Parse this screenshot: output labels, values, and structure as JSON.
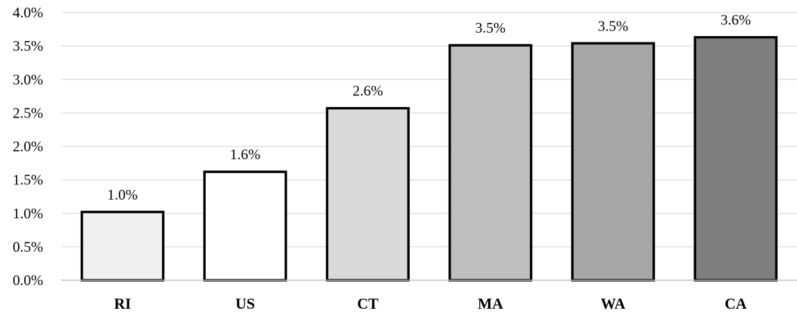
{
  "chart_data": {
    "type": "bar",
    "title": "",
    "xlabel": "",
    "ylabel": "",
    "categories": [
      "RI",
      "US",
      "CT",
      "MA",
      "WA",
      "CA"
    ],
    "values": [
      1.02,
      1.62,
      2.57,
      3.51,
      3.54,
      3.63
    ],
    "data_labels": [
      "1.0%",
      "1.6%",
      "2.6%",
      "3.5%",
      "3.5%",
      "3.6%"
    ],
    "bar_colors": [
      "#f0f0f0",
      "#ffffff",
      "#d9d9d9",
      "#bfbfbf",
      "#a6a6a6",
      "#7f7f7f"
    ],
    "bar_outline_color": "#000000",
    "ylim": [
      0,
      4
    ],
    "yticks": [
      0,
      0.5,
      1.0,
      1.5,
      2.0,
      2.5,
      3.0,
      3.5,
      4.0
    ],
    "ytick_labels": [
      "0.0%",
      "0.5%",
      "1.0%",
      "1.5%",
      "2.0%",
      "2.5%",
      "3.0%",
      "3.5%",
      "4.0%"
    ],
    "grid": true,
    "legend": "none"
  }
}
